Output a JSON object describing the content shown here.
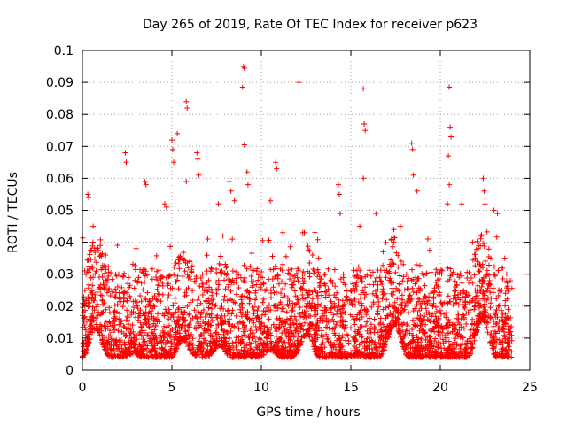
{
  "chart_data": {
    "type": "scatter",
    "title": "Day 265 of 2019, Rate Of TEC Index for receiver p623",
    "xlabel": "GPS time / hours",
    "ylabel": "ROTI / TECUs",
    "xlim": [
      0,
      25
    ],
    "ylim": [
      0,
      0.1
    ],
    "xticks": [
      0,
      5,
      10,
      15,
      20,
      25
    ],
    "xtick_labels": [
      "0",
      "5",
      "10",
      "15",
      "20",
      "25"
    ],
    "yticks": [
      0,
      0.01,
      0.02,
      0.03,
      0.04,
      0.05,
      0.06,
      0.07,
      0.08,
      0.09,
      0.1
    ],
    "ytick_labels": [
      "0",
      "0.01",
      "0.02",
      "0.03",
      "0.04",
      "0.05",
      "0.06",
      "0.07",
      "0.08",
      "0.09",
      "0.1"
    ],
    "grid": true,
    "marker": "+",
    "marker_color": "#ff0000",
    "data_range": [
      0,
      24
    ],
    "series": [
      {
        "name": "ROTI",
        "points": [
          [
            0.3,
            0.055
          ],
          [
            0.35,
            0.054
          ],
          [
            0.6,
            0.045
          ],
          [
            2.4,
            0.068
          ],
          [
            2.45,
            0.065
          ],
          [
            3.5,
            0.059
          ],
          [
            3.55,
            0.058
          ],
          [
            4.6,
            0.052
          ],
          [
            4.7,
            0.051
          ],
          [
            5.0,
            0.072
          ],
          [
            5.05,
            0.069
          ],
          [
            5.1,
            0.065
          ],
          [
            5.3,
            0.074
          ],
          [
            5.8,
            0.084
          ],
          [
            5.85,
            0.082
          ],
          [
            5.8,
            0.059
          ],
          [
            6.4,
            0.068
          ],
          [
            6.45,
            0.066
          ],
          [
            6.5,
            0.061
          ],
          [
            7.6,
            0.052
          ],
          [
            8.2,
            0.059
          ],
          [
            8.3,
            0.056
          ],
          [
            8.5,
            0.053
          ],
          [
            9.0,
            0.095
          ],
          [
            9.05,
            0.0945
          ],
          [
            8.95,
            0.0885
          ],
          [
            9.05,
            0.0705
          ],
          [
            9.2,
            0.062
          ],
          [
            9.25,
            0.058
          ],
          [
            10.8,
            0.065
          ],
          [
            10.85,
            0.063
          ],
          [
            10.5,
            0.053
          ],
          [
            12.1,
            0.09
          ],
          [
            12.4,
            0.043
          ],
          [
            14.3,
            0.058
          ],
          [
            14.35,
            0.055
          ],
          [
            14.4,
            0.049
          ],
          [
            15.7,
            0.088
          ],
          [
            15.75,
            0.077
          ],
          [
            15.8,
            0.075
          ],
          [
            15.7,
            0.06
          ],
          [
            15.5,
            0.045
          ],
          [
            16.4,
            0.049
          ],
          [
            17.4,
            0.044
          ],
          [
            18.4,
            0.071
          ],
          [
            18.45,
            0.069
          ],
          [
            18.5,
            0.061
          ],
          [
            18.7,
            0.056
          ],
          [
            20.5,
            0.0885
          ],
          [
            20.55,
            0.076
          ],
          [
            20.6,
            0.073
          ],
          [
            20.45,
            0.067
          ],
          [
            20.5,
            0.058
          ],
          [
            20.4,
            0.052
          ],
          [
            21.2,
            0.052
          ],
          [
            22.4,
            0.06
          ],
          [
            22.45,
            0.056
          ],
          [
            22.5,
            0.052
          ],
          [
            23.0,
            0.05
          ],
          [
            23.2,
            0.049
          ],
          [
            1.0,
            0.039
          ],
          [
            3.0,
            0.038
          ],
          [
            7.0,
            0.041
          ],
          [
            11.2,
            0.043
          ],
          [
            13.2,
            0.035
          ],
          [
            16.8,
            0.037
          ],
          [
            19.3,
            0.041
          ],
          [
            21.8,
            0.04
          ],
          [
            23.6,
            0.035
          ]
        ]
      }
    ]
  }
}
